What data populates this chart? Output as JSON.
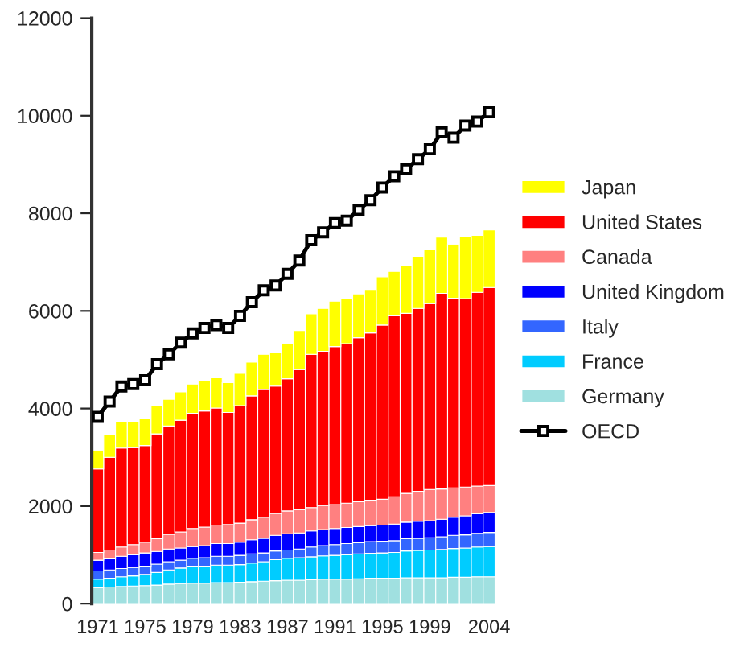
{
  "chart_data": {
    "type": "bar",
    "stacked": true,
    "categories": [
      "1971",
      null,
      null,
      null,
      "1975",
      null,
      null,
      null,
      "1979",
      null,
      null,
      null,
      "1983",
      null,
      null,
      null,
      "1987",
      null,
      null,
      null,
      "1991",
      null,
      null,
      null,
      "1995",
      null,
      null,
      null,
      "1999",
      null,
      null,
      null,
      null,
      "2004"
    ],
    "series": [
      {
        "name": "Germany",
        "color": "#a0e0e0",
        "values": [
          330,
          340,
          350,
          360,
          370,
          380,
          400,
          410,
          420,
          420,
          430,
          430,
          440,
          450,
          460,
          470,
          480,
          480,
          490,
          500,
          500,
          500,
          510,
          520,
          520,
          520,
          530,
          530,
          530,
          530,
          540,
          540,
          550,
          550
        ]
      },
      {
        "name": "France",
        "color": "#00ccff",
        "values": [
          170,
          180,
          200,
          210,
          230,
          260,
          290,
          320,
          350,
          350,
          360,
          360,
          360,
          380,
          400,
          430,
          450,
          460,
          470,
          480,
          490,
          500,
          510,
          510,
          520,
          530,
          550,
          560,
          570,
          580,
          590,
          600,
          610,
          620
        ]
      },
      {
        "name": "Italy",
        "color": "#3366ff",
        "values": [
          170,
          170,
          170,
          170,
          170,
          170,
          170,
          160,
          160,
          170,
          180,
          180,
          190,
          190,
          180,
          180,
          170,
          180,
          200,
          210,
          220,
          230,
          230,
          240,
          240,
          240,
          250,
          250,
          250,
          260,
          270,
          270,
          280,
          290
        ]
      },
      {
        "name": "United Kingdom",
        "color": "#0000ff",
        "values": [
          220,
          230,
          250,
          260,
          270,
          260,
          260,
          250,
          240,
          250,
          260,
          260,
          270,
          290,
          300,
          320,
          330,
          330,
          330,
          330,
          330,
          330,
          330,
          330,
          330,
          340,
          340,
          350,
          350,
          360,
          370,
          390,
          400,
          410
        ]
      },
      {
        "name": "Canada",
        "color": "#ff8080",
        "values": [
          160,
          180,
          190,
          210,
          220,
          260,
          300,
          330,
          370,
          380,
          380,
          390,
          390,
          410,
          430,
          450,
          470,
          480,
          480,
          490,
          490,
          500,
          510,
          520,
          530,
          560,
          590,
          610,
          640,
          620,
          600,
          590,
          570,
          550
        ]
      },
      {
        "name": "United States",
        "color": "#ff0000",
        "values": [
          1710,
          1900,
          2030,
          1990,
          1980,
          2150,
          2220,
          2290,
          2360,
          2380,
          2400,
          2300,
          2410,
          2540,
          2620,
          2610,
          2710,
          2870,
          3140,
          3160,
          3240,
          3270,
          3360,
          3430,
          3570,
          3710,
          3690,
          3750,
          3810,
          4010,
          3890,
          3860,
          3970,
          4060
        ]
      },
      {
        "name": "Japan",
        "color": "#ffff00",
        "values": [
          380,
          460,
          550,
          530,
          550,
          580,
          550,
          580,
          600,
          630,
          620,
          610,
          660,
          690,
          720,
          680,
          720,
          800,
          830,
          880,
          930,
          930,
          900,
          890,
          990,
          910,
          990,
          1070,
          1100,
          1150,
          1100,
          1270,
          1170,
          1180
        ]
      },
      {
        "name": "OECD",
        "type": "line",
        "color": "#000000",
        "marker": "square",
        "values": [
          3830,
          4140,
          4450,
          4500,
          4580,
          4910,
          5110,
          5350,
          5540,
          5650,
          5710,
          5650,
          5900,
          6180,
          6420,
          6520,
          6760,
          7030,
          7450,
          7610,
          7800,
          7850,
          8070,
          8270,
          8530,
          8760,
          8900,
          9110,
          9310,
          9660,
          9550,
          9800,
          9880,
          10070
        ]
      }
    ],
    "ylim": [
      0,
      12000
    ],
    "yticks": [
      0,
      2000,
      4000,
      6000,
      8000,
      10000,
      12000
    ],
    "grid": false,
    "legend": "right"
  }
}
